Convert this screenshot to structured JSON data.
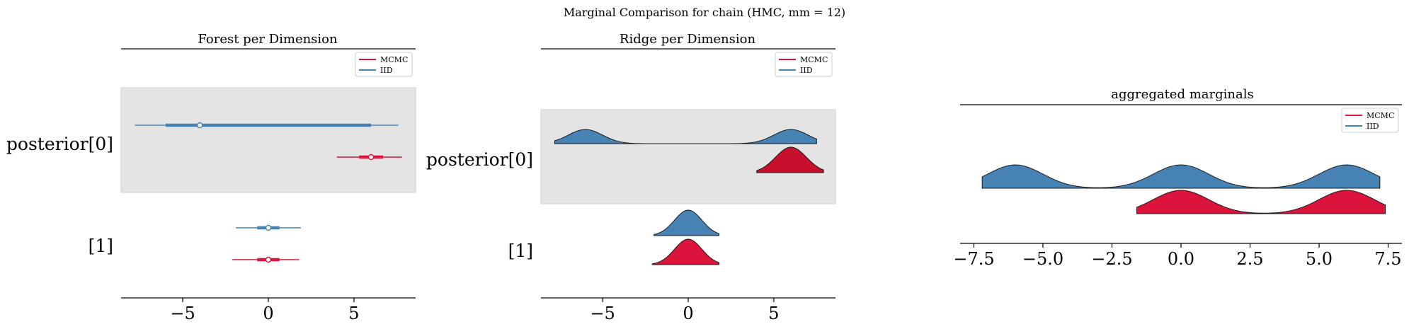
{
  "figure": {
    "suptitle": "Marginal Comparison for chain (HMC, mm = 12)"
  },
  "colors": {
    "mcmc": "#dc143c",
    "mcmc_ridge": "#c8102e",
    "iid": "#4682b4",
    "shade": "#e4e4e4"
  },
  "chart_data": [
    {
      "type": "forest",
      "title": "Forest per Dimension",
      "xlim": [
        -8.6,
        8.6
      ],
      "xticks": [
        -5,
        0,
        5
      ],
      "xtick_labels": [
        "−5",
        "0",
        "5"
      ],
      "legend": {
        "placement": "top-right",
        "entries": [
          "MCMC",
          "IID"
        ]
      },
      "dimensions": [
        {
          "label": "posterior[0]",
          "shaded": true,
          "series": [
            {
              "name": "IID",
              "hdi94": [
                -7.8,
                7.6
              ],
              "hdi50": [
                -6.0,
                6.0
              ],
              "point": -4.0
            },
            {
              "name": "MCMC",
              "hdi94": [
                4.0,
                7.8
              ],
              "hdi50": [
                5.3,
                6.7
              ],
              "point": 6.0
            }
          ]
        },
        {
          "label": "[1]",
          "shaded": false,
          "series": [
            {
              "name": "IID",
              "hdi94": [
                -1.9,
                1.9
              ],
              "hdi50": [
                -0.65,
                0.65
              ],
              "point": 0.0
            },
            {
              "name": "MCMC",
              "hdi94": [
                -2.1,
                1.8
              ],
              "hdi50": [
                -0.65,
                0.65
              ],
              "point": 0.0
            }
          ]
        }
      ]
    },
    {
      "type": "ridge",
      "title": "Ridge per Dimension",
      "xlim": [
        -8.6,
        8.6
      ],
      "xticks": [
        -5,
        0,
        5
      ],
      "xtick_labels": [
        "−5",
        "0",
        "5"
      ],
      "legend": {
        "placement": "top-right",
        "entries": [
          "MCMC",
          "IID"
        ]
      },
      "dimensions": [
        {
          "label": "posterior[0]",
          "shaded": true,
          "series": [
            {
              "name": "IID",
              "range": [
                -7.8,
                7.5
              ],
              "components": [
                {
                  "mu": -6.0,
                  "sd": 1.0
                },
                {
                  "mu": 6.0,
                  "sd": 1.0
                }
              ]
            },
            {
              "name": "MCMC",
              "range": [
                4.0,
                7.9
              ],
              "components": [
                {
                  "mu": 6.0,
                  "sd": 0.9
                }
              ]
            }
          ]
        },
        {
          "label": "[1]",
          "shaded": false,
          "series": [
            {
              "name": "IID",
              "range": [
                -2.0,
                1.8
              ],
              "components": [
                {
                  "mu": 0.0,
                  "sd": 0.8
                }
              ]
            },
            {
              "name": "MCMC",
              "range": [
                -2.1,
                1.8
              ],
              "components": [
                {
                  "mu": 0.0,
                  "sd": 0.8
                }
              ]
            }
          ]
        }
      ]
    },
    {
      "type": "ridge",
      "title": "aggregated marginals",
      "xlim": [
        -8.0,
        8.0
      ],
      "xticks": [
        -7.5,
        -5.0,
        -2.5,
        0.0,
        2.5,
        5.0,
        7.5
      ],
      "xtick_labels": [
        "−7.5",
        "−5.0",
        "−2.5",
        "0.0",
        "2.5",
        "5.0",
        "7.5"
      ],
      "legend": {
        "placement": "top-right",
        "entries": [
          "MCMC",
          "IID"
        ]
      },
      "series": [
        {
          "name": "IID",
          "range": [
            -7.2,
            7.2
          ],
          "components": [
            {
              "mu": -6.0,
              "sd": 1.0
            },
            {
              "mu": 0.0,
              "sd": 1.0
            },
            {
              "mu": 6.0,
              "sd": 1.0
            }
          ]
        },
        {
          "name": "MCMC",
          "range": [
            -1.6,
            7.4
          ],
          "components": [
            {
              "mu": 0.0,
              "sd": 1.0
            },
            {
              "mu": 6.0,
              "sd": 1.0
            }
          ]
        }
      ]
    }
  ]
}
